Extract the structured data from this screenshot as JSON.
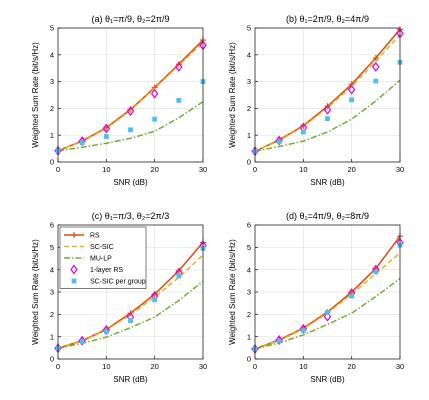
{
  "figure": {
    "xlabel": "SNR (dB)",
    "ylabel": "Weighted Sum Rate (bit/s/Hz)"
  },
  "legend": {
    "panel_index": 2,
    "position": "top-left"
  },
  "colors": {
    "RS": "#d95319",
    "SC-SIC": "#edb120",
    "MU-LP": "#77ac30",
    "1-layer RS": "#e000e0",
    "SC-SIC per group": "#4dbeee"
  },
  "chart_data": [
    {
      "type": "line",
      "title": "(a) θ₁=π/9, θ₂=2π/9",
      "xlabel": "SNR (dB)",
      "ylabel": "Weighted Sum Rate (bit/s/Hz)",
      "x": [
        0,
        5,
        10,
        15,
        20,
        25,
        30
      ],
      "xlim": [
        0,
        30
      ],
      "ylim": [
        0,
        5
      ],
      "xticks": [
        "0",
        "10",
        "20",
        "30"
      ],
      "yticks": [
        "0",
        "1",
        "2",
        "3",
        "4",
        "5"
      ],
      "grid": true,
      "series": [
        {
          "name": "RS",
          "values": [
            0.42,
            0.78,
            1.28,
            1.95,
            2.78,
            3.65,
            4.55
          ]
        },
        {
          "name": "SC-SIC",
          "values": [
            0.42,
            0.76,
            1.25,
            1.92,
            2.75,
            3.6,
            4.45
          ]
        },
        {
          "name": "MU-LP",
          "values": [
            0.42,
            0.55,
            0.7,
            0.88,
            1.15,
            1.65,
            2.25
          ]
        },
        {
          "name": "1-layer RS",
          "values": [
            0.42,
            0.78,
            1.25,
            1.9,
            2.55,
            3.55,
            4.35
          ]
        },
        {
          "name": "SC-SIC per group",
          "values": [
            0.42,
            0.72,
            0.95,
            1.2,
            1.6,
            2.3,
            3.0
          ]
        }
      ]
    },
    {
      "type": "line",
      "title": "(b) θ₁=2π/9, θ₂=4π/9",
      "xlabel": "SNR (dB)",
      "ylabel": "Weighted Sum Rate (bit/s/Hz)",
      "x": [
        0,
        5,
        10,
        15,
        20,
        25,
        30
      ],
      "xlim": [
        0,
        30
      ],
      "ylim": [
        0,
        5
      ],
      "xticks": [
        "0",
        "10",
        "20",
        "30"
      ],
      "yticks": [
        "0",
        "1",
        "2",
        "3",
        "4",
        "5"
      ],
      "grid": true,
      "series": [
        {
          "name": "RS",
          "values": [
            0.4,
            0.82,
            1.35,
            2.08,
            2.9,
            3.88,
            4.95
          ]
        },
        {
          "name": "SC-SIC",
          "values": [
            0.4,
            0.8,
            1.32,
            2.02,
            2.82,
            3.75,
            4.75
          ]
        },
        {
          "name": "MU-LP",
          "values": [
            0.4,
            0.58,
            0.78,
            1.12,
            1.6,
            2.28,
            3.05
          ]
        },
        {
          "name": "1-layer RS",
          "values": [
            0.4,
            0.8,
            1.28,
            1.95,
            2.7,
            3.55,
            4.8
          ]
        },
        {
          "name": "SC-SIC per group",
          "values": [
            0.4,
            0.75,
            1.12,
            1.62,
            2.32,
            3.02,
            3.72
          ]
        }
      ]
    },
    {
      "type": "line",
      "title": "(c) θ₁=π/3, θ₂=2π/3",
      "xlabel": "SNR (dB)",
      "ylabel": "Weighted Sum Rate (bit/s/Hz)",
      "x": [
        0,
        5,
        10,
        15,
        20,
        25,
        30
      ],
      "xlim": [
        0,
        30
      ],
      "ylim": [
        0,
        6
      ],
      "xticks": [
        "0",
        "10",
        "20",
        "30"
      ],
      "yticks": [
        "0",
        "1",
        "2",
        "3",
        "4",
        "5",
        "6"
      ],
      "grid": true,
      "series": [
        {
          "name": "RS",
          "values": [
            0.48,
            0.82,
            1.32,
            2.05,
            2.9,
            3.95,
            5.22
          ]
        },
        {
          "name": "SC-SIC",
          "values": [
            0.48,
            0.8,
            1.3,
            1.98,
            2.78,
            3.65,
            4.65
          ]
        },
        {
          "name": "MU-LP",
          "values": [
            0.48,
            0.7,
            0.98,
            1.4,
            1.88,
            2.62,
            3.48
          ]
        },
        {
          "name": "1-layer RS",
          "values": [
            0.48,
            0.82,
            1.3,
            1.88,
            2.82,
            3.85,
            5.08
          ]
        },
        {
          "name": "SC-SIC per group",
          "values": [
            0.48,
            0.78,
            1.22,
            1.72,
            2.65,
            3.72,
            4.95
          ]
        }
      ]
    },
    {
      "type": "line",
      "title": "(d) θ₁=4π/9, θ₂=8π/9",
      "xlabel": "SNR (dB)",
      "ylabel": "Weighted Sum Rate (bit/s/Hz)",
      "x": [
        0,
        5,
        10,
        15,
        20,
        25,
        30
      ],
      "xlim": [
        0,
        30
      ],
      "ylim": [
        0,
        6
      ],
      "xticks": [
        "0",
        "10",
        "20",
        "30"
      ],
      "yticks": [
        "0",
        "1",
        "2",
        "3",
        "4",
        "5",
        "6"
      ],
      "grid": true,
      "series": [
        {
          "name": "RS",
          "values": [
            0.45,
            0.85,
            1.38,
            2.1,
            3.0,
            4.05,
            5.5
          ]
        },
        {
          "name": "SC-SIC",
          "values": [
            0.45,
            0.82,
            1.35,
            2.05,
            2.9,
            3.82,
            4.75
          ]
        },
        {
          "name": "MU-LP",
          "values": [
            0.45,
            0.72,
            1.08,
            1.55,
            2.05,
            2.8,
            3.6
          ]
        },
        {
          "name": "1-layer RS",
          "values": [
            0.45,
            0.85,
            1.35,
            1.9,
            2.95,
            4.0,
            5.2
          ]
        },
        {
          "name": "SC-SIC per group",
          "values": [
            0.45,
            0.8,
            1.28,
            2.08,
            2.82,
            3.9,
            5.1
          ]
        }
      ]
    }
  ]
}
